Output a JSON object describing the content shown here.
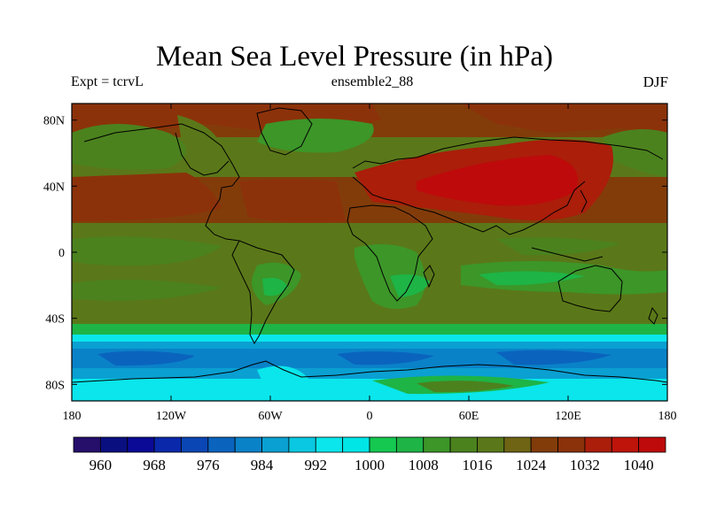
{
  "title": "Mean Sea Level Pressure (in hPa)",
  "subtitle_left": "Expt = tcrvL",
  "subtitle_center": "ensemble2_88",
  "subtitle_right": "DJF",
  "lat_ticks": [
    {
      "label": "80N",
      "lat": 80
    },
    {
      "label": "40N",
      "lat": 40
    },
    {
      "label": "0",
      "lat": 0
    },
    {
      "label": "40S",
      "lat": -40
    },
    {
      "label": "80S",
      "lat": -80
    }
  ],
  "lon_ticks": [
    {
      "label": "180",
      "lon": -180
    },
    {
      "label": "120W",
      "lon": -120
    },
    {
      "label": "60W",
      "lon": -60
    },
    {
      "label": "0",
      "lon": 0
    },
    {
      "label": "60E",
      "lon": 60
    },
    {
      "label": "120E",
      "lon": 120
    },
    {
      "label": "180",
      "lon": 180
    }
  ],
  "colorbar": {
    "colors": [
      "#260f6b",
      "#0a0f80",
      "#0a0a96",
      "#0a28aa",
      "#0a46b4",
      "#0a64be",
      "#0a82c8",
      "#0aa0d2",
      "#0ac8e1",
      "#0ae6eb",
      "#00e6e6",
      "#14c850",
      "#1eb446",
      "#3c9628",
      "#4b821e",
      "#5a7819",
      "#6e6414",
      "#823c0a",
      "#8c320a",
      "#aa1e0a",
      "#be140a",
      "#be0a0a"
    ],
    "labels": [
      "960",
      "968",
      "976",
      "984",
      "992",
      "1000",
      "1008",
      "1016",
      "1024",
      "1032",
      "1040"
    ],
    "label_positions": [
      1,
      3,
      5,
      7,
      9,
      11,
      13,
      15,
      17,
      19,
      21
    ]
  },
  "colors": {
    "background": "#ffffff",
    "band_high_red": "#a01e0a",
    "band_orange": "#8c3c0a",
    "band_olive": "#5a6e14",
    "band_green": "#3c9628",
    "band_light_green": "#1eb446",
    "band_cyan": "#0ae6eb",
    "band_blue": "#0a82c8",
    "band_dark_blue": "#0a46b4"
  }
}
